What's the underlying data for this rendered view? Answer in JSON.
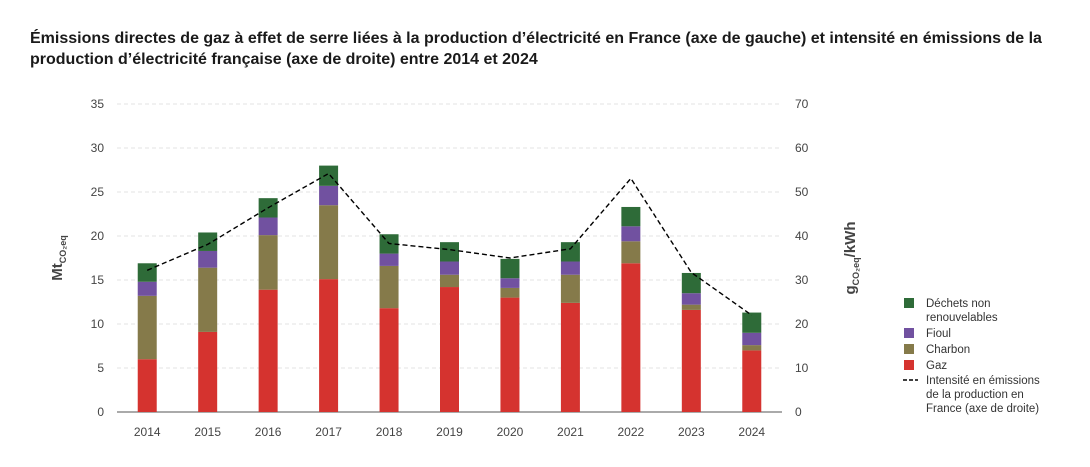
{
  "chart_data": {
    "type": "bar",
    "title": "Émissions directes de gaz à effet de serre liées à la production d’électricité en France (axe de gauche) et intensité en émissions de la production d’électricité française (axe de droite) entre 2014 et 2024",
    "categories": [
      "2014",
      "2015",
      "2016",
      "2017",
      "2018",
      "2019",
      "2020",
      "2021",
      "2022",
      "2023",
      "2024"
    ],
    "stacked": true,
    "ylabel_left": {
      "main": "Mt",
      "sub": "CO₂eq"
    },
    "ylabel_right": {
      "main": "g",
      "sub": "CO₂eq",
      "suffix": "/kWh"
    },
    "ylim_left": [
      0,
      35
    ],
    "ylim_right": [
      0,
      70
    ],
    "yticks_left": [
      "0",
      "5",
      "10",
      "15",
      "20",
      "25",
      "30",
      "35"
    ],
    "yticks_right": [
      "0",
      "10",
      "20",
      "30",
      "40",
      "50",
      "60",
      "70"
    ],
    "grid": true,
    "legend_position": "right",
    "series": [
      {
        "name": "Gaz",
        "color": "#d5332f",
        "values": [
          6.0,
          9.1,
          13.9,
          15.1,
          11.8,
          14.2,
          13.0,
          12.4,
          16.9,
          11.6,
          7.0
        ]
      },
      {
        "name": "Charbon",
        "color": "#857a4a",
        "values": [
          7.2,
          7.3,
          6.2,
          8.4,
          4.8,
          1.4,
          1.1,
          3.2,
          2.5,
          0.6,
          0.6
        ]
      },
      {
        "name": "Fioul",
        "color": "#7151a0",
        "values": [
          1.6,
          1.9,
          2.0,
          2.2,
          1.4,
          1.5,
          1.1,
          1.5,
          1.7,
          1.3,
          1.4
        ]
      },
      {
        "name": "Déchets non renouvelables",
        "color": "#2e6b38",
        "values": [
          2.1,
          2.1,
          2.2,
          2.3,
          2.2,
          2.2,
          2.2,
          2.2,
          2.2,
          2.3,
          2.3
        ]
      }
    ],
    "line_series": {
      "name": "Intensité en émissions de la production en France (axe de droite)",
      "color": "#000000",
      "dashed": true,
      "axis": "right",
      "values": [
        32.2,
        38.1,
        46.4,
        54.2,
        38.3,
        36.9,
        35.0,
        37.1,
        53.1,
        31.7,
        22.0
      ]
    },
    "legend": [
      {
        "label": "Déchets non renouvelables",
        "color": "#2e6b38",
        "kind": "swatch"
      },
      {
        "label": "Fioul",
        "color": "#7151a0",
        "kind": "swatch"
      },
      {
        "label": "Charbon",
        "color": "#857a4a",
        "kind": "swatch"
      },
      {
        "label": "Gaz",
        "color": "#d5332f",
        "kind": "swatch"
      },
      {
        "label": "Intensité en émissions de la production en France (axe de droite)",
        "color": "#000000",
        "kind": "dashed-line"
      }
    ]
  }
}
